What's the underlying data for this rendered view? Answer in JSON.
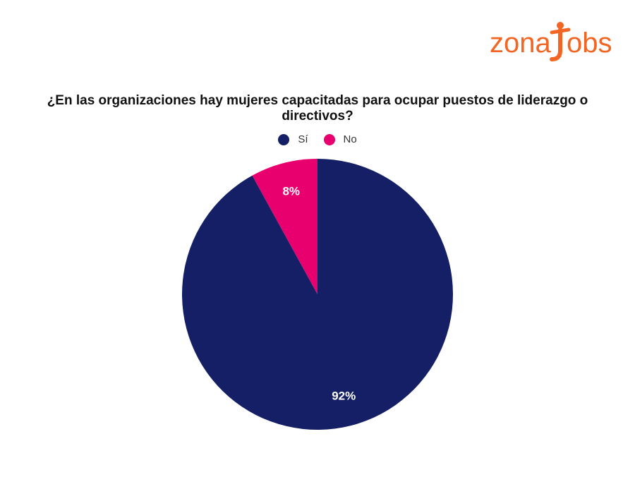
{
  "logo": {
    "text_part1": "zona",
    "text_part2": "Jobs",
    "color": "#f26522",
    "icon": "person-figure-icon"
  },
  "chart_data": {
    "type": "pie",
    "title": "¿En las organizaciones hay mujeres capacitadas para ocupar puestos de liderazgo o directivos?",
    "categories": [
      "Sí",
      "No"
    ],
    "values": [
      92,
      8
    ],
    "labels": [
      "92%",
      "8%"
    ],
    "colors": [
      "#141f66",
      "#e8006f"
    ],
    "start_angle": "12 o'clock",
    "direction": "clockwise",
    "legend_position": "top-center"
  }
}
